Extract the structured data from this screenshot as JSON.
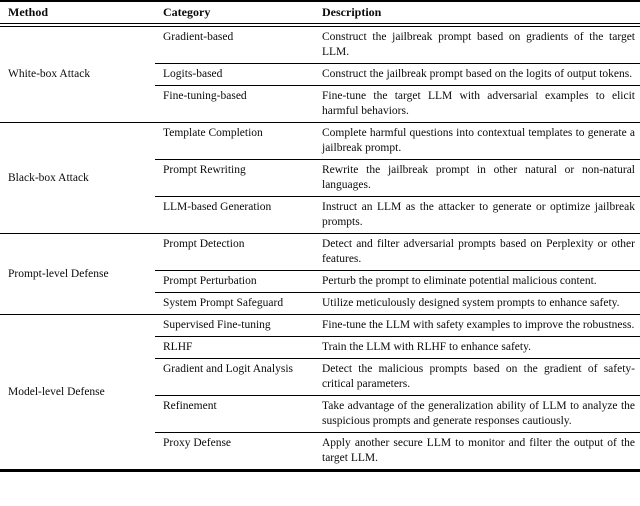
{
  "table": {
    "columns": [
      "Method",
      "Category",
      "Description"
    ],
    "sections": [
      {
        "method": "White-box Attack",
        "rows": [
          {
            "category": "Gradient-based",
            "description": "Construct the jailbreak prompt based on gradients of the target LLM."
          },
          {
            "category": "Logits-based",
            "description": "Construct the jailbreak prompt based on the logits of output tokens."
          },
          {
            "category": "Fine-tuning-based",
            "description": "Fine-tune the target LLM with adversarial examples to elicit harmful behaviors."
          }
        ]
      },
      {
        "method": "Black-box Attack",
        "rows": [
          {
            "category": "Template Completion",
            "description": "Complete harmful questions into contextual templates to generate a jailbreak prompt."
          },
          {
            "category": "Prompt Rewriting",
            "description": "Rewrite the jailbreak prompt in other natural or non-natural languages."
          },
          {
            "category": "LLM-based Generation",
            "description": "Instruct an LLM as the attacker to generate or optimize jailbreak prompts."
          }
        ]
      },
      {
        "method": "Prompt-level Defense",
        "rows": [
          {
            "category": "Prompt Detection",
            "description": "Detect and filter adversarial prompts based on Perplexity or other features."
          },
          {
            "category": "Prompt Perturbation",
            "description": "Perturb the prompt to eliminate potential malicious content."
          },
          {
            "category": "System Prompt Safeguard",
            "description": "Utilize meticulously designed system prompts to enhance safety."
          }
        ]
      },
      {
        "method": "Model-level Defense",
        "rows": [
          {
            "category": "Supervised Fine-tuning",
            "description": "Fine-tune the LLM with safety examples to improve the robustness."
          },
          {
            "category": "RLHF",
            "description": "Train the LLM with RLHF to enhance safety."
          },
          {
            "category": "Gradient and Logit Analysis",
            "description": "Detect the malicious prompts based on the gradient of safety-critical parameters."
          },
          {
            "category": "Refinement",
            "description": "Take advantage of the generalization ability of LLM to analyze the suspicious prompts and generate responses cautiously."
          },
          {
            "category": "Proxy Defense",
            "description": "Apply another secure LLM to monitor and filter the output of the target LLM."
          }
        ]
      }
    ],
    "colors": {
      "text": "#0a0a0a",
      "rule": "#000000",
      "background": "#ffffff"
    }
  }
}
